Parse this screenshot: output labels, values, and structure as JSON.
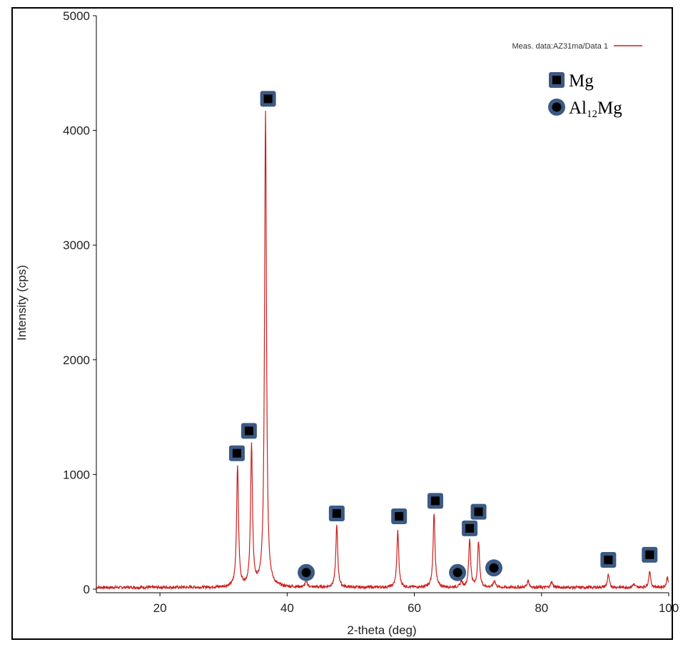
{
  "chart_data": {
    "type": "line",
    "xlabel": "2-theta (deg)",
    "ylabel": "Intensity (cps)",
    "xlim": [
      10,
      100
    ],
    "ylim": [
      0,
      5000
    ],
    "x_ticks": [
      20,
      40,
      60,
      80,
      100
    ],
    "y_ticks": [
      0,
      1000,
      2000,
      3000,
      4000,
      5000
    ],
    "x_tick_labels": [
      "20",
      "40",
      "60",
      "80",
      "100"
    ],
    "y_tick_labels": [
      "0",
      "1000",
      "2000",
      "3000",
      "4000",
      "5000"
    ],
    "grid": false,
    "legend": {
      "placement": "top-right",
      "label": "Meas. data:AZ31ma/Data 1"
    },
    "series": [
      {
        "name": "Meas. data:AZ31ma/Data 1",
        "color": "#cc1f1f",
        "baseline": 15,
        "peaks": [
          {
            "x": 32.2,
            "y": 1060
          },
          {
            "x": 34.4,
            "y": 1230
          },
          {
            "x": 36.6,
            "y": 4150
          },
          {
            "x": 43.0,
            "y": 60
          },
          {
            "x": 47.8,
            "y": 540
          },
          {
            "x": 57.4,
            "y": 490
          },
          {
            "x": 63.1,
            "y": 650
          },
          {
            "x": 67.4,
            "y": 50
          },
          {
            "x": 68.7,
            "y": 420
          },
          {
            "x": 70.1,
            "y": 400
          },
          {
            "x": 72.6,
            "y": 60
          },
          {
            "x": 77.9,
            "y": 60
          },
          {
            "x": 81.6,
            "y": 50
          },
          {
            "x": 90.5,
            "y": 110
          },
          {
            "x": 94.5,
            "y": 30
          },
          {
            "x": 97.0,
            "y": 140
          },
          {
            "x": 99.8,
            "y": 90
          }
        ]
      }
    ],
    "annotations": [
      {
        "marker": "square",
        "phase": "Mg",
        "x": 32.1,
        "y": 1185
      },
      {
        "marker": "square",
        "phase": "Mg",
        "x": 34.0,
        "y": 1380
      },
      {
        "marker": "square",
        "phase": "Mg",
        "x": 37.0,
        "y": 4275
      },
      {
        "marker": "circle",
        "phase": "Al12Mg",
        "x": 43.0,
        "y": 145
      },
      {
        "marker": "square",
        "phase": "Mg",
        "x": 47.8,
        "y": 660
      },
      {
        "marker": "square",
        "phase": "Mg",
        "x": 57.6,
        "y": 635
      },
      {
        "marker": "square",
        "phase": "Mg",
        "x": 63.3,
        "y": 770
      },
      {
        "marker": "circle",
        "phase": "Al12Mg",
        "x": 66.8,
        "y": 145
      },
      {
        "marker": "square",
        "phase": "Mg",
        "x": 68.7,
        "y": 530
      },
      {
        "marker": "square",
        "phase": "Mg",
        "x": 70.1,
        "y": 675
      },
      {
        "marker": "circle",
        "phase": "Al12Mg",
        "x": 72.5,
        "y": 185
      },
      {
        "marker": "square",
        "phase": "Mg",
        "x": 90.5,
        "y": 255
      },
      {
        "marker": "square",
        "phase": "Mg",
        "x": 97.0,
        "y": 300
      }
    ],
    "phase_legend": [
      {
        "marker": "square",
        "label": "Mg",
        "sub": "",
        "tail": ""
      },
      {
        "marker": "circle",
        "label": "Al",
        "sub": "12",
        "tail": "Mg"
      }
    ]
  },
  "colors": {
    "line": "#cc1f1f",
    "marker_fill": "#3b5a84",
    "marker_core": "#000000",
    "axis": "#000000"
  }
}
